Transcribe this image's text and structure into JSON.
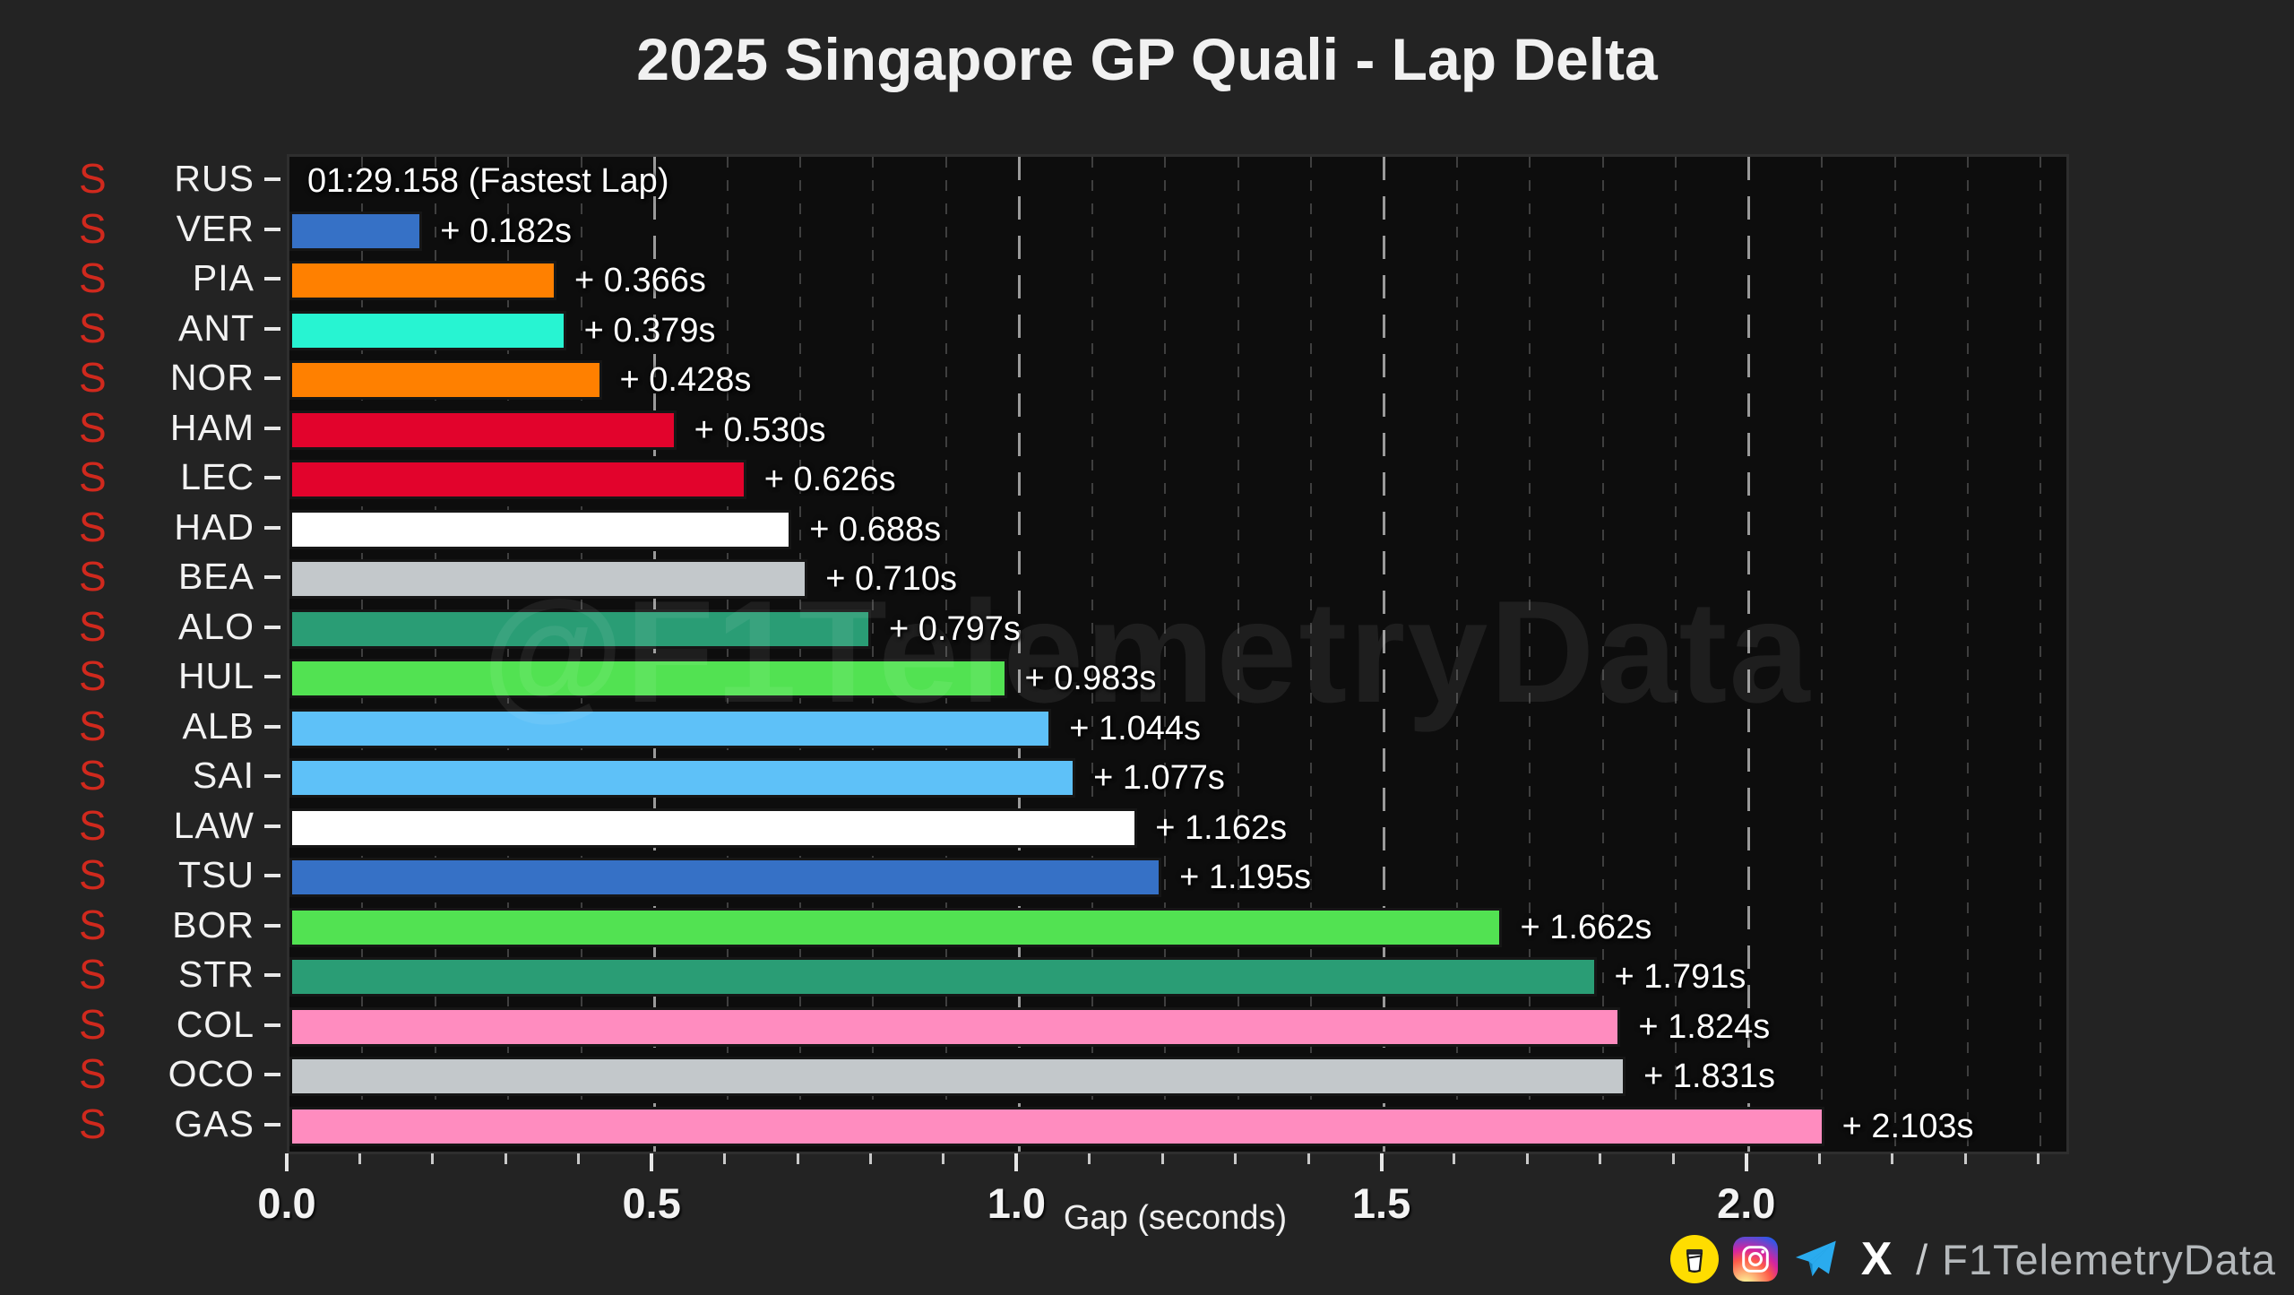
{
  "title": "2025 Singapore GP Quali - Lap Delta",
  "watermark": "@F1TelemetryData",
  "axis": {
    "xlabel": "Gap (seconds)",
    "tick_labels": [
      "0.0",
      "0.5",
      "1.0",
      "1.5",
      "2.0"
    ],
    "major_step": 0.5,
    "minor_step": 0.1,
    "xmax": 2.435
  },
  "footer": {
    "separator": "/",
    "handle": "F1TelemetryData",
    "icons": [
      "coffee-icon",
      "instagram-icon",
      "telegram-icon",
      "x-icon"
    ]
  },
  "drivers": [
    {
      "code": "RUS",
      "tyre": "S",
      "delta": 0,
      "label": "01:29.158 (Fastest Lap)",
      "color": "#27F4D2"
    },
    {
      "code": "VER",
      "tyre": "S",
      "delta": 0.182,
      "label": "+ 0.182s",
      "color": "#3671C6"
    },
    {
      "code": "PIA",
      "tyre": "S",
      "delta": 0.366,
      "label": "+ 0.366s",
      "color": "#FF8000"
    },
    {
      "code": "ANT",
      "tyre": "S",
      "delta": 0.379,
      "label": "+ 0.379s",
      "color": "#27F4D2"
    },
    {
      "code": "NOR",
      "tyre": "S",
      "delta": 0.428,
      "label": "+ 0.428s",
      "color": "#FF8000"
    },
    {
      "code": "HAM",
      "tyre": "S",
      "delta": 0.53,
      "label": "+ 0.530s",
      "color": "#E2032C"
    },
    {
      "code": "LEC",
      "tyre": "S",
      "delta": 0.626,
      "label": "+ 0.626s",
      "color": "#E2032C"
    },
    {
      "code": "HAD",
      "tyre": "S",
      "delta": 0.688,
      "label": "+ 0.688s",
      "color": "#FFFFFF"
    },
    {
      "code": "BEA",
      "tyre": "S",
      "delta": 0.71,
      "label": "+ 0.710s",
      "color": "#C3C8CB"
    },
    {
      "code": "ALO",
      "tyre": "S",
      "delta": 0.797,
      "label": "+ 0.797s",
      "color": "#2A9D75"
    },
    {
      "code": "HUL",
      "tyre": "S",
      "delta": 0.983,
      "label": "+ 0.983s",
      "color": "#52E252"
    },
    {
      "code": "ALB",
      "tyre": "S",
      "delta": 1.044,
      "label": "+ 1.044s",
      "color": "#5EC1F8"
    },
    {
      "code": "SAI",
      "tyre": "S",
      "delta": 1.077,
      "label": "+ 1.077s",
      "color": "#5EC1F8"
    },
    {
      "code": "LAW",
      "tyre": "S",
      "delta": 1.162,
      "label": "+ 1.162s",
      "color": "#FFFFFF"
    },
    {
      "code": "TSU",
      "tyre": "S",
      "delta": 1.195,
      "label": "+ 1.195s",
      "color": "#3671C6"
    },
    {
      "code": "BOR",
      "tyre": "S",
      "delta": 1.662,
      "label": "+ 1.662s",
      "color": "#52E252"
    },
    {
      "code": "STR",
      "tyre": "S",
      "delta": 1.791,
      "label": "+ 1.791s",
      "color": "#2A9D75"
    },
    {
      "code": "COL",
      "tyre": "S",
      "delta": 1.824,
      "label": "+ 1.824s",
      "color": "#FF8CBF"
    },
    {
      "code": "OCO",
      "tyre": "S",
      "delta": 1.831,
      "label": "+ 1.831s",
      "color": "#C3C8CB"
    },
    {
      "code": "GAS",
      "tyre": "S",
      "delta": 2.103,
      "label": "+ 2.103s",
      "color": "#FF8CBF"
    }
  ],
  "chart_data": {
    "type": "bar",
    "orientation": "horizontal",
    "title": "2025 Singapore GP Quali - Lap Delta",
    "xlabel": "Gap (seconds)",
    "xlim": [
      0,
      2.435
    ],
    "grid": "vertical dashed, minor 0.1 / major 0.5",
    "legend": "none",
    "categories": [
      "RUS",
      "VER",
      "PIA",
      "ANT",
      "NOR",
      "HAM",
      "LEC",
      "HAD",
      "BEA",
      "ALO",
      "HUL",
      "ALB",
      "SAI",
      "LAW",
      "TSU",
      "BOR",
      "STR",
      "COL",
      "OCO",
      "GAS"
    ],
    "values": [
      0,
      0.182,
      0.366,
      0.379,
      0.428,
      0.53,
      0.626,
      0.688,
      0.71,
      0.797,
      0.983,
      1.044,
      1.077,
      1.162,
      1.195,
      1.662,
      1.791,
      1.824,
      1.831,
      2.103
    ],
    "bar_labels": [
      "01:29.158 (Fastest Lap)",
      "+ 0.182s",
      "+ 0.366s",
      "+ 0.379s",
      "+ 0.428s",
      "+ 0.530s",
      "+ 0.626s",
      "+ 0.688s",
      "+ 0.710s",
      "+ 0.797s",
      "+ 0.983s",
      "+ 1.044s",
      "+ 1.077s",
      "+ 1.162s",
      "+ 1.195s",
      "+ 1.662s",
      "+ 1.791s",
      "+ 1.824s",
      "+ 1.831s",
      "+ 2.103s"
    ],
    "bar_colors": [
      "#27F4D2",
      "#3671C6",
      "#FF8000",
      "#27F4D2",
      "#FF8000",
      "#E2032C",
      "#E2032C",
      "#FFFFFF",
      "#C3C8CB",
      "#2A9D75",
      "#52E252",
      "#5EC1F8",
      "#5EC1F8",
      "#FFFFFF",
      "#3671C6",
      "#52E252",
      "#2A9D75",
      "#FF8CBF",
      "#C3C8CB",
      "#FF8CBF"
    ],
    "tyre_flags": [
      "S",
      "S",
      "S",
      "S",
      "S",
      "S",
      "S",
      "S",
      "S",
      "S",
      "S",
      "S",
      "S",
      "S",
      "S",
      "S",
      "S",
      "S",
      "S",
      "S"
    ]
  }
}
